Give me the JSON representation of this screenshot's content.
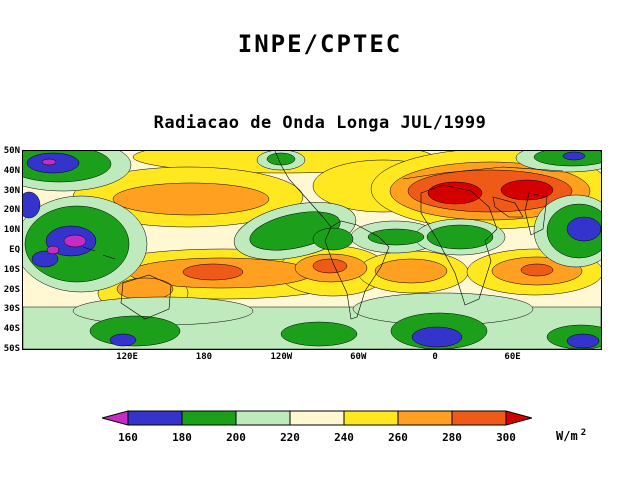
{
  "header": {
    "title": "INPE/CPTEC"
  },
  "chart": {
    "subtitle": "Radiacao de Onda Longa JUL/1999",
    "units_base": "W/m",
    "units_exp": "2",
    "lat_ticks": [
      "50N",
      "40N",
      "30N",
      "20N",
      "10N",
      "EQ",
      "10S",
      "20S",
      "30S",
      "40S",
      "50S"
    ],
    "lon_ticks": [
      {
        "label": "120E",
        "f": 0.18
      },
      {
        "label": "180",
        "f": 0.313
      },
      {
        "label": "120W",
        "f": 0.447
      },
      {
        "label": "60W",
        "f": 0.58
      },
      {
        "label": "0",
        "f": 0.713
      },
      {
        "label": "60E",
        "f": 0.847
      }
    ]
  },
  "chart_data": {
    "type": "heatmap",
    "title": "Radiacao de Onda Longa JUL/1999",
    "organization": "INPE/CPTEC",
    "units": "W/m2",
    "levels": [
      160,
      180,
      200,
      220,
      240,
      260,
      280,
      300
    ],
    "colors": [
      "#C42CC4",
      "#3434CC",
      "#1CA01C",
      "#BEEABE",
      "#FFF8D2",
      "#FFE820",
      "#FFA020",
      "#F05A18",
      "#D40000"
    ],
    "colorbar": {
      "orientation": "horizontal",
      "low_arrow": true,
      "high_arrow": true,
      "position": "bottom"
    },
    "axes": {
      "lat_labels": [
        "50N",
        "40N",
        "30N",
        "20N",
        "10N",
        "EQ",
        "10S",
        "20S",
        "30S",
        "40S",
        "50S"
      ],
      "lon_labels": [
        "120E",
        "180",
        "120W",
        "60W",
        "0",
        "60E"
      ],
      "grid": false
    },
    "features": [
      {
        "region": "tropical western Pacific / Maritime Continent convection",
        "value_range": "below 180 with minima under 160"
      },
      {
        "region": "northwest Pacific (40-50N, top-left)",
        "value_range": "180-220 with pockets under 180"
      },
      {
        "region": "North Africa and Arabian Peninsula",
        "value_range": "280-300 with cores above 300"
      },
      {
        "region": "subtropical North Pacific band (20-30N)",
        "value_range": "260-280"
      },
      {
        "region": "South Pacific subtropical band (10-20S)",
        "value_range": "260-280 with core 280-300"
      },
      {
        "region": "central South America (~10S)",
        "value_range": "260-280 with core 280-300"
      },
      {
        "region": "equatorial Africa",
        "value_range": "200-220"
      },
      {
        "region": "equatorial central Pacific ITCZ",
        "value_range": "200-220"
      },
      {
        "region": "Indian monsoon region (right edge)",
        "value_range": "180-200 with minima under 180"
      },
      {
        "region": "Southern Ocean (40-50S)",
        "value_range": "200-240 with patches under 200"
      },
      {
        "region": "northern Australia",
        "value_range": "260-280"
      }
    ]
  }
}
